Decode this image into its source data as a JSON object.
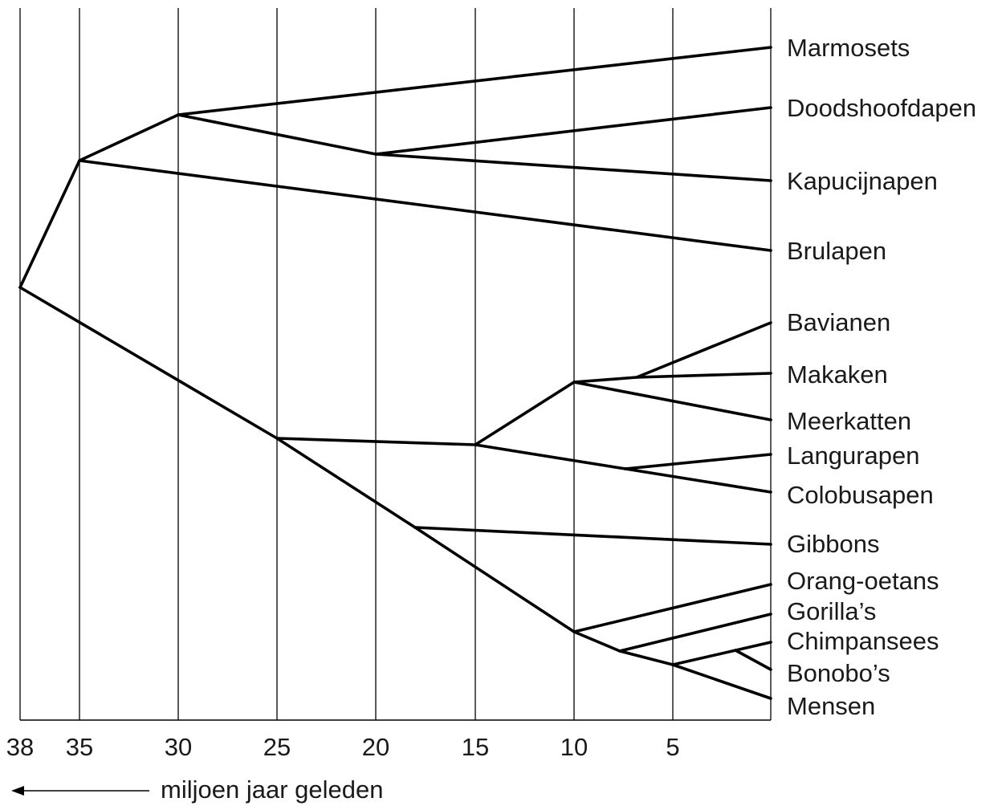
{
  "taxa": {
    "marmosets": "Marmosets",
    "doodshoofdapen": "Doodshoofdapen",
    "kapucijnapen": "Kapucijnapen",
    "brulapen": "Brulapen",
    "bavianen": "Bavianen",
    "makaken": "Makaken",
    "meerkatten": "Meerkatten",
    "langurapen": "Langurapen",
    "colobusapen": "Colobusapen",
    "gibbons": "Gibbons",
    "orang_oetans": "Orang-oetans",
    "gorillas": "Gorilla’s",
    "chimpansees": "Chimpansees",
    "bonobos": "Bonobo’s",
    "mensen": "Mensen"
  },
  "axis": {
    "ticks": [
      "38",
      "35",
      "30",
      "25",
      "20",
      "15",
      "10",
      "5"
    ],
    "unit_label": "miljoen jaar geleden",
    "arrow": "left-arrow"
  },
  "divergence_mya": {
    "root": 38,
    "new_world_monkeys": 35,
    "marmosets_split": 30,
    "doodshoofdapen_kapucijnapen": 20,
    "old_world_monkeys_apes": 25,
    "old_world_monkeys": 15,
    "cercopithecines": 10,
    "bavianen_makaken": 6.5,
    "langurapen_colobusapen": 7.5,
    "gibbons_split": 18,
    "great_apes": 10,
    "gorilla_split": 7.7,
    "chimp_human_split": 5,
    "chimpansees_bonobos": 1.8
  }
}
